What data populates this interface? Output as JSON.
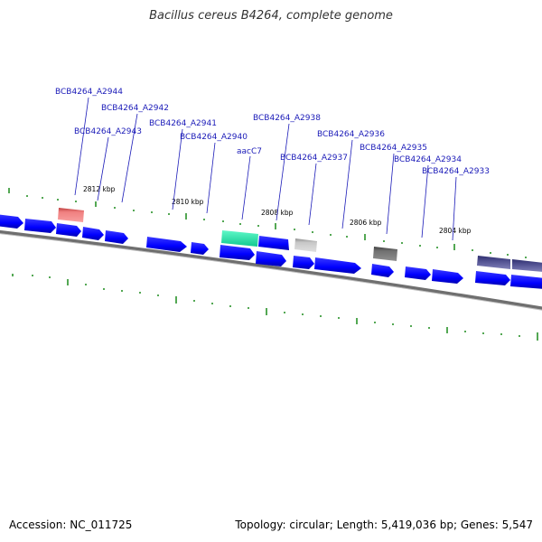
{
  "title": "Bacillus cereus B4264, complete genome",
  "footer": {
    "accession": "Accession: NC_011725",
    "topology": "Topology: circular; Length: 5,419,036 bp; Genes: 5,547"
  },
  "colors": {
    "cds": "#0000ff",
    "backbone": "#808080",
    "tick": "#1a8a1a",
    "label": "#1a1ab8",
    "rrna": "#f08080",
    "trna": "#30e8b0",
    "misc": "#b0b0b0",
    "ncrna": "#707070",
    "repeat": "#404088"
  },
  "ruler_labels": [
    "2812 kbp",
    "2810 kbp",
    "2808 kbp",
    "2806 kbp",
    "2804 kbp"
  ],
  "gene_labels": [
    "BCB4264_A2944",
    "BCB4264_A2942",
    "BCB4264_A2941",
    "BCB4264_A2943",
    "BCB4264_A2940",
    "BCB4264_A2938",
    "aacC7",
    "BCB4264_A2936",
    "BCB4264_A2937",
    "BCB4264_A2935",
    "BCB4264_A2934",
    "BCB4264_A2933"
  ]
}
